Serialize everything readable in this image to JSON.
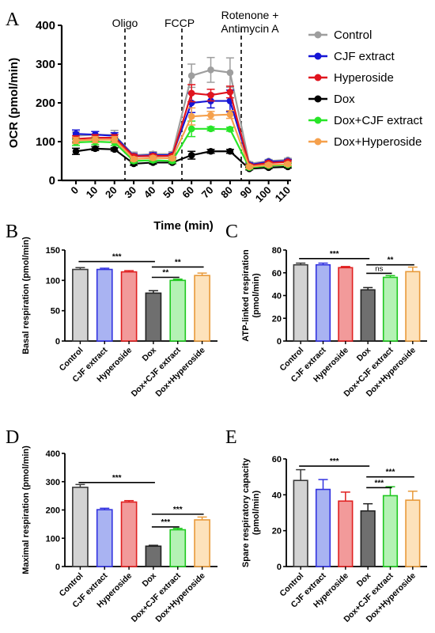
{
  "panels": {
    "a": {
      "letter": "A"
    },
    "b": {
      "letter": "B"
    },
    "c": {
      "letter": "C"
    },
    "d": {
      "letter": "D"
    },
    "e": {
      "letter": "E"
    }
  },
  "colors": {
    "Control": "#9e9e9e",
    "CJF extract": "#1515d6",
    "Hyperoside": "#e0141e",
    "Dox": "#000000",
    "Dox+CJF extract": "#28e528",
    "Dox+Hyperoside": "#f5a04c"
  },
  "bar_fills": [
    "#d3d3d3",
    "#a9b3f2",
    "#f29a9a",
    "#6f6f6f",
    "#b4f2b4",
    "#fde2bb"
  ],
  "bar_strokes": [
    "#3a3a3a",
    "#3232e0",
    "#e02020",
    "#222222",
    "#1fc81f",
    "#e89a3a"
  ],
  "chart_data": [
    {
      "type": "line",
      "panel": "A",
      "ylabel": "OCR (pmol/min)",
      "xlabel": "Time (min)",
      "ylim": [
        0,
        400
      ],
      "yticks": [
        0,
        100,
        200,
        300,
        400
      ],
      "x": [
        0,
        10,
        20,
        30,
        40,
        50,
        60,
        70,
        80,
        90,
        100,
        110
      ],
      "annotations": [
        {
          "text": "Oligo",
          "x_after": 20
        },
        {
          "text": "FCCP",
          "x_after": 50
        },
        {
          "text": "Rotenone +",
          "text2": "Antimycin A",
          "x_after": 80
        }
      ],
      "legend_position": "right",
      "series": [
        {
          "name": "Control",
          "values": [
            115,
            118,
            117,
            65,
            68,
            68,
            270,
            285,
            278,
            43,
            50,
            53
          ],
          "errors": [
            10,
            8,
            12,
            8,
            6,
            6,
            30,
            32,
            38,
            5,
            4,
            4
          ]
        },
        {
          "name": "CJF extract",
          "values": [
            120,
            118,
            115,
            63,
            65,
            65,
            200,
            205,
            205,
            40,
            48,
            50
          ],
          "errors": [
            10,
            8,
            8,
            6,
            6,
            5,
            25,
            18,
            28,
            5,
            4,
            4
          ]
        },
        {
          "name": "Hyperoside",
          "values": [
            107,
            110,
            110,
            62,
            63,
            63,
            225,
            220,
            228,
            38,
            45,
            48
          ],
          "errors": [
            8,
            8,
            8,
            5,
            5,
            5,
            22,
            15,
            15,
            4,
            4,
            4
          ]
        },
        {
          "name": "Dox",
          "values": [
            75,
            82,
            80,
            43,
            46,
            46,
            65,
            75,
            75,
            30,
            33,
            35
          ],
          "errors": [
            8,
            5,
            4,
            4,
            4,
            3,
            10,
            5,
            5,
            3,
            3,
            3
          ]
        },
        {
          "name": "Dox+CJF extract",
          "values": [
            98,
            100,
            98,
            50,
            52,
            50,
            133,
            133,
            132,
            33,
            38,
            40
          ],
          "errors": [
            8,
            8,
            8,
            5,
            5,
            5,
            20,
            5,
            5,
            4,
            4,
            4
          ]
        },
        {
          "name": "Dox+Hyperoside",
          "values": [
            103,
            105,
            105,
            55,
            58,
            57,
            165,
            168,
            170,
            35,
            40,
            42
          ],
          "errors": [
            8,
            8,
            8,
            5,
            5,
            5,
            22,
            10,
            10,
            4,
            4,
            4
          ]
        }
      ]
    },
    {
      "type": "bar",
      "panel": "B",
      "ylabel": "Basal respiration (pmol/min)",
      "ylim": [
        0,
        150
      ],
      "yticks": [
        0,
        50,
        100,
        150
      ],
      "categories": [
        "Control",
        "CJF extract",
        "Hyperoside",
        "Dox",
        "Dox+CJF extract",
        "Dox+Hyperoside"
      ],
      "values": [
        118,
        118,
        114,
        79,
        100,
        108
      ],
      "errors": [
        3,
        2,
        2,
        4,
        2,
        4
      ],
      "significance": [
        {
          "label": "***",
          "from": 0,
          "to": 3,
          "y": 131
        },
        {
          "label": "**",
          "from": 3,
          "to": 5,
          "y": 122
        },
        {
          "label": "**",
          "from": 3,
          "to": 4,
          "y": 105
        }
      ]
    },
    {
      "type": "bar",
      "panel": "C",
      "ylabel": "ATP-linked respiration (pmol/min)",
      "ylabel_lines": [
        "ATP-linked respiration",
        "(pmol/min)"
      ],
      "ylim": [
        0,
        80
      ],
      "yticks": [
        0,
        20,
        40,
        60,
        80
      ],
      "categories": [
        "Control",
        "CJF extract",
        "Hyperoside",
        "Dox",
        "Dox+CJF extract",
        "Dox+Hyperoside"
      ],
      "values": [
        67,
        67,
        64.5,
        45,
        56,
        61
      ],
      "errors": [
        1.5,
        1.5,
        1,
        2,
        1.5,
        4
      ],
      "significance": [
        {
          "label": "***",
          "from": 0,
          "to": 3,
          "y": 72.5
        },
        {
          "label": "**",
          "from": 3,
          "to": 5,
          "y": 67
        },
        {
          "label": "ns",
          "from": 3,
          "to": 4,
          "y": 59.5
        }
      ]
    },
    {
      "type": "bar",
      "panel": "D",
      "ylabel": "Maximal respiration (pmol/min)",
      "ylim": [
        0,
        400
      ],
      "yticks": [
        0,
        100,
        200,
        300,
        400
      ],
      "categories": [
        "Control",
        "CJF extract",
        "Hyperoside",
        "Dox",
        "Dox+CJF extract",
        "Dox+Hyperoside"
      ],
      "values": [
        280,
        201,
        228,
        72,
        130,
        165
      ],
      "errors": [
        10,
        5,
        5,
        3,
        5,
        10
      ],
      "significance": [
        {
          "label": "***",
          "from": 0,
          "to": 3,
          "y": 297
        },
        {
          "label": "***",
          "from": 3,
          "to": 5,
          "y": 185
        },
        {
          "label": "***",
          "from": 3,
          "to": 4,
          "y": 140
        }
      ]
    },
    {
      "type": "bar",
      "panel": "E",
      "ylabel": "Spare respiratory capacity (pmol/min)",
      "ylabel_lines": [
        "Spare respiratory capacity",
        "(pmol/min)"
      ],
      "ylim": [
        0,
        60
      ],
      "yticks": [
        0,
        20,
        40,
        60
      ],
      "categories": [
        "Control",
        "CJF extract",
        "Hyperoside",
        "Dox",
        "Dox+CJF extract",
        "Dox+Hyperoside"
      ],
      "values": [
        48,
        43,
        36.5,
        31,
        39.5,
        37
      ],
      "errors": [
        6,
        5.5,
        5,
        4,
        5,
        5
      ],
      "significance": [
        {
          "label": "***",
          "from": 0,
          "to": 3,
          "y": 56
        },
        {
          "label": "***",
          "from": 3,
          "to": 5,
          "y": 50
        },
        {
          "label": "***",
          "from": 3,
          "to": 4,
          "y": 44
        }
      ]
    }
  ]
}
